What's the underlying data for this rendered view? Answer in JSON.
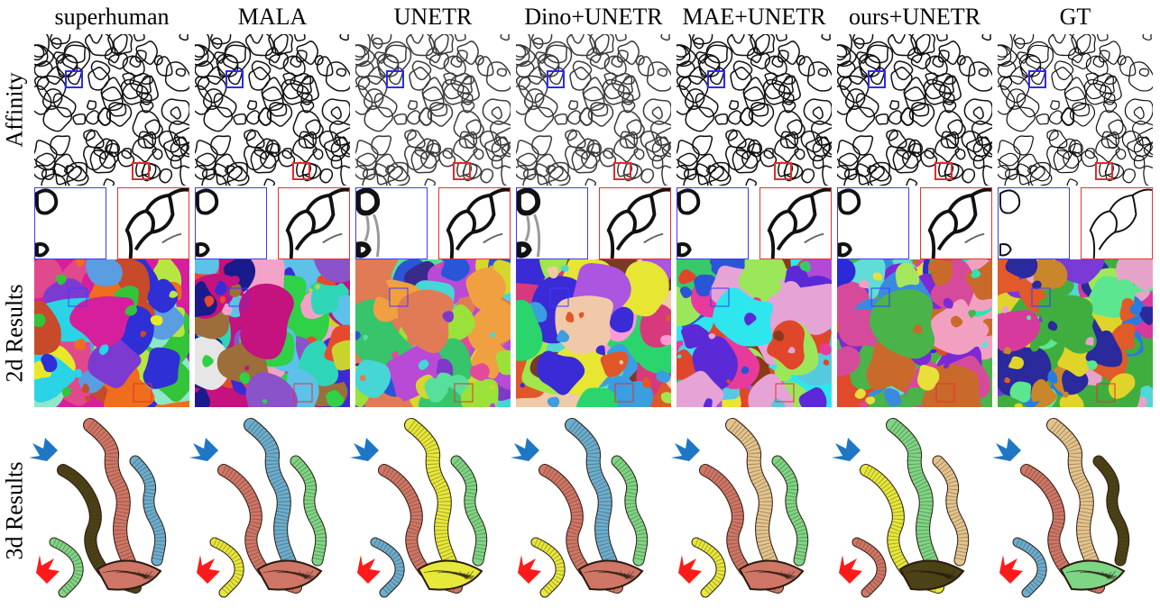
{
  "columns": [
    {
      "title": "superhuman"
    },
    {
      "title": "MALA"
    },
    {
      "title": "UNETR"
    },
    {
      "title": "Dino+UNETR"
    },
    {
      "title": "MAE+UNETR"
    },
    {
      "title": "ours+UNETR"
    },
    {
      "title": "GT"
    }
  ],
  "rows": {
    "affinity": "Affinity",
    "results2d": "2d Results",
    "results3d": "3d Results"
  },
  "colors": {
    "zoom_blue": "#3b3bff",
    "zoom_red": "#e33232",
    "arrow_blue": "#1f77c4",
    "arrow_red": "#ff1a1a",
    "salmon": "#cf7666",
    "lightblue": "#6aaecf",
    "yellow": "#e6e83a",
    "olive": "#4b4216",
    "green": "#7dd685",
    "tan": "#e4c48d"
  },
  "seg_palettes": [
    [
      "#d61f9c",
      "#7d3ad1",
      "#2bd3e6",
      "#34c43a",
      "#e8e82a",
      "#2f2fd6",
      "#ee6e1e",
      "#b8e640",
      "#5a9de0",
      "#e04a8c",
      "#8ee7c9",
      "#c74a2a"
    ],
    [
      "#c4127f",
      "#3a2bd6",
      "#2ed6b7",
      "#8a53c9",
      "#2fd147",
      "#f2a2c9",
      "#1a1a8c",
      "#c9d32e",
      "#e64a2e",
      "#5dc1e8",
      "#9c6e3a",
      "#e6e6e6"
    ],
    [
      "#e07b55",
      "#37c46b",
      "#7d3ac9",
      "#d6d62e",
      "#2a55d6",
      "#e34a9c",
      "#46d6d6",
      "#9ae23a",
      "#3a2a8c",
      "#f0a040",
      "#b84ad6",
      "#57e09c"
    ],
    [
      "#f0c9a8",
      "#3a9ee0",
      "#d63a7d",
      "#ab55e0",
      "#2ad66b",
      "#e6e633",
      "#e0572a",
      "#52d6d6",
      "#3a2bd6",
      "#a1e64a",
      "#7a3a2a",
      "#ff9ad6"
    ],
    [
      "#2ee6ee",
      "#5b2ad6",
      "#e0462a",
      "#39c96b",
      "#e83a9c",
      "#e6e633",
      "#b34ad6",
      "#2a55d6",
      "#e6a3d6",
      "#9ce65a",
      "#8a3a1a",
      "#55c9e0"
    ],
    [
      "#4ab34a",
      "#2a2ad6",
      "#d64a9c",
      "#e8e03a",
      "#62dcd6",
      "#e04a2a",
      "#7a2ad6",
      "#a6e65a",
      "#2ae6b0",
      "#f2a0c0",
      "#3a8ae0",
      "#c96a2a"
    ],
    [
      "#3fae3f",
      "#2a7ae0",
      "#e0d42a",
      "#d63a9c",
      "#52d6d6",
      "#e05a2a",
      "#7a3ad6",
      "#9ee65a",
      "#e6a3c9",
      "#2a2a9c",
      "#5ce68f",
      "#c9862a"
    ]
  ]
}
